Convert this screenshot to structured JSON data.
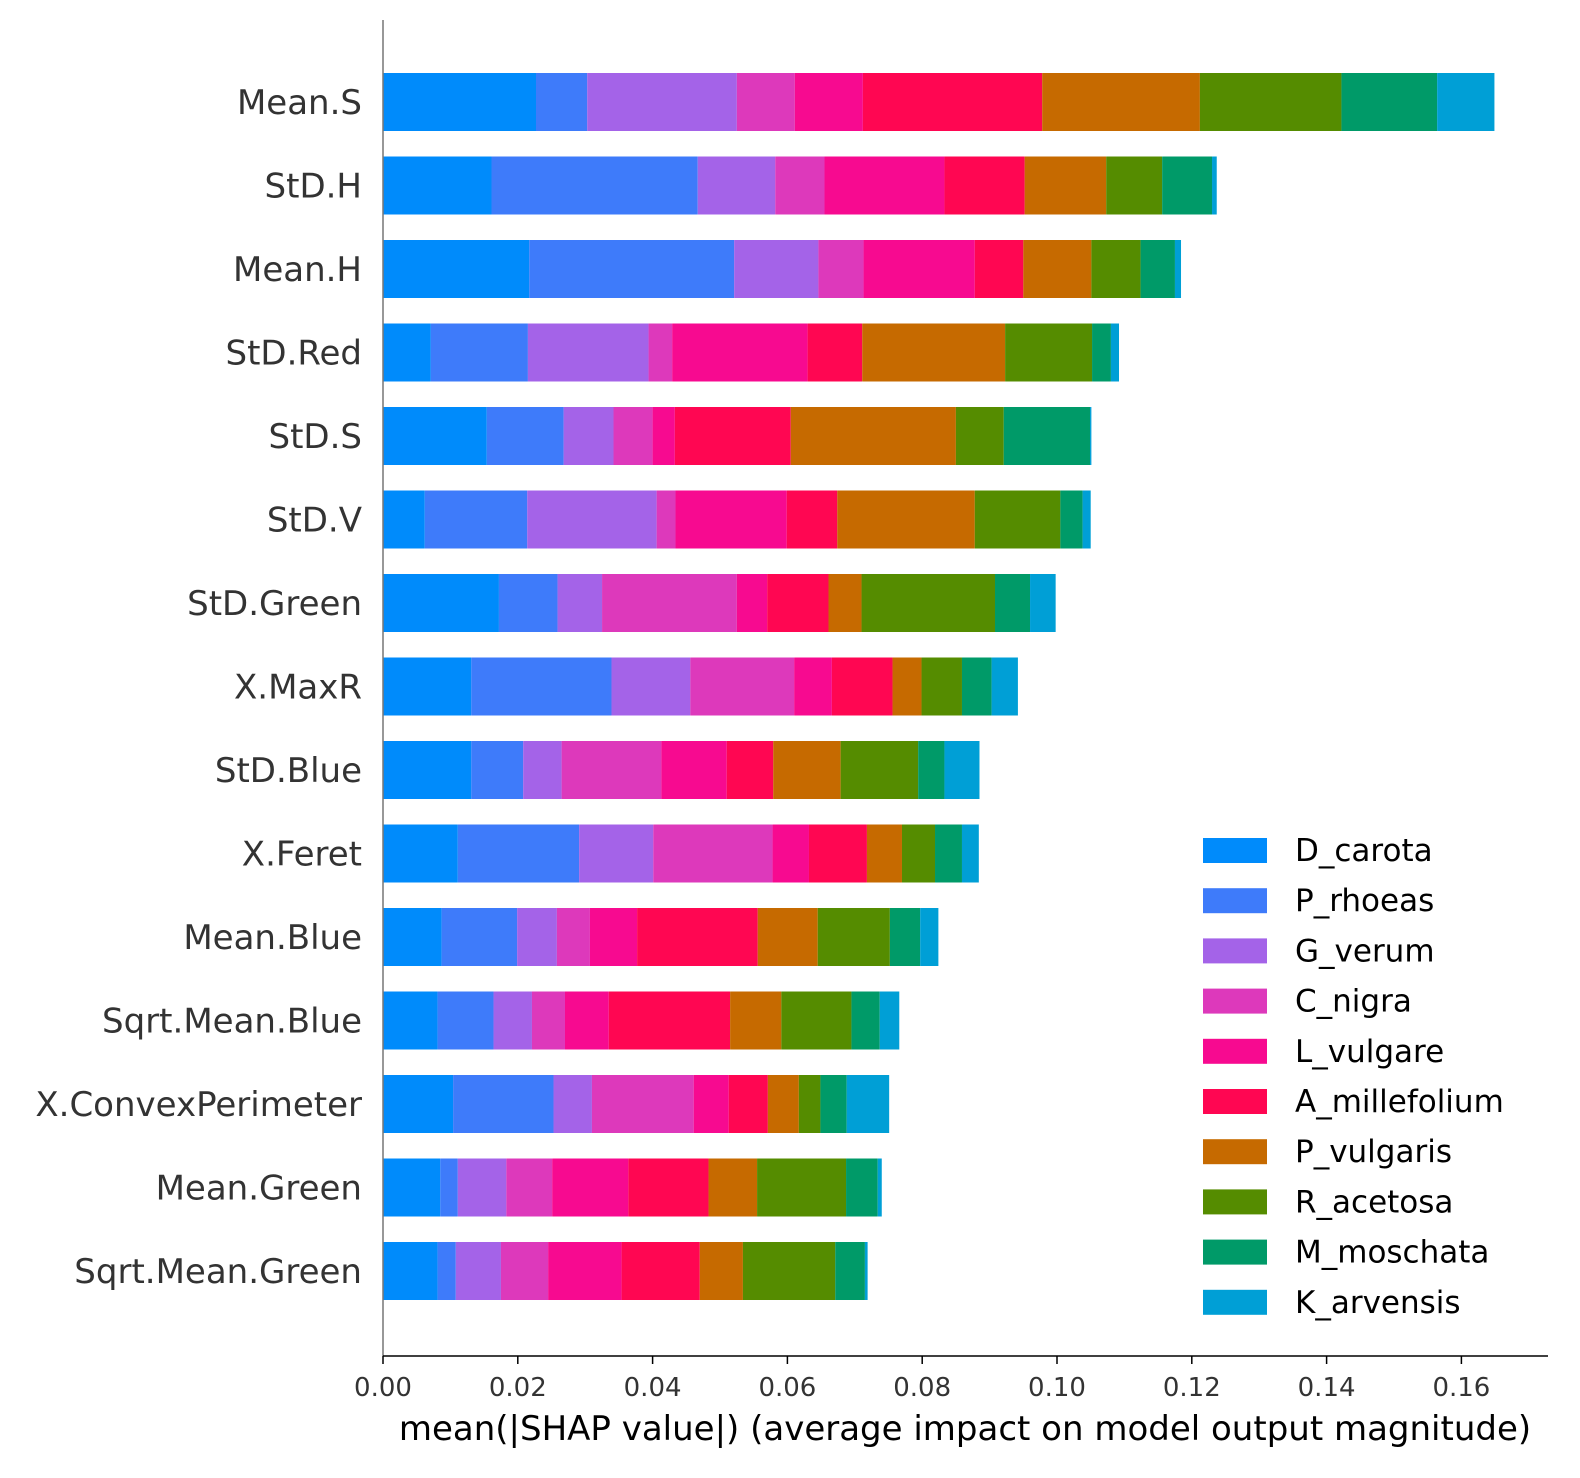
{
  "chart_data": {
    "type": "bar",
    "orientation": "horizontal",
    "stacked": true,
    "xlabel": "mean(|SHAP value|) (average impact on model output magnitude)",
    "xlim": [
      0,
      0.173
    ],
    "xticks": [
      "0.00",
      "0.02",
      "0.04",
      "0.06",
      "0.08",
      "0.10",
      "0.12",
      "0.14",
      "0.16"
    ],
    "legend_position": "lower-right",
    "categories": [
      "Mean.S",
      "StD.H",
      "Mean.H",
      "StD.Red",
      "StD.S",
      "StD.V",
      "StD.Green",
      "X.MaxR",
      "StD.Blue",
      "X.Feret",
      "Mean.Blue",
      "Sqrt.Mean.Blue",
      "X.ConvexPerimeter",
      "Mean.Green",
      "Sqrt.Mean.Green"
    ],
    "series": [
      {
        "name": "D_carota",
        "color": "#008bfb",
        "values": [
          0.0227,
          0.0161,
          0.0217,
          0.0071,
          0.0154,
          0.0062,
          0.0172,
          0.0131,
          0.0131,
          0.0111,
          0.0087,
          0.0081,
          0.0104,
          0.0085,
          0.0081
        ]
      },
      {
        "name": "P_rhoeas",
        "color": "#3e7bfa",
        "values": [
          0.0076,
          0.0306,
          0.0304,
          0.0144,
          0.0114,
          0.0152,
          0.0087,
          0.0208,
          0.0077,
          0.018,
          0.0112,
          0.0083,
          0.0149,
          0.0026,
          0.0027
        ]
      },
      {
        "name": "G_verum",
        "color": "#a463e8",
        "values": [
          0.0222,
          0.0115,
          0.0125,
          0.0179,
          0.0074,
          0.0192,
          0.0066,
          0.0117,
          0.0057,
          0.011,
          0.0059,
          0.0057,
          0.0057,
          0.0072,
          0.0067
        ]
      },
      {
        "name": "C_nigra",
        "color": "#dd39bb",
        "values": [
          0.0086,
          0.0073,
          0.0067,
          0.0035,
          0.0058,
          0.0028,
          0.02,
          0.0154,
          0.0148,
          0.0177,
          0.0049,
          0.0049,
          0.0151,
          0.0068,
          0.007
        ]
      },
      {
        "name": "L_vulgare",
        "color": "#f70a90",
        "values": [
          0.0101,
          0.0178,
          0.0165,
          0.0201,
          0.0033,
          0.0165,
          0.0045,
          0.0056,
          0.0097,
          0.0054,
          0.007,
          0.0065,
          0.0052,
          0.0113,
          0.0109
        ]
      },
      {
        "name": "A_millefolium",
        "color": "#ff0652",
        "values": [
          0.0266,
          0.0119,
          0.0072,
          0.0081,
          0.0172,
          0.0075,
          0.0091,
          0.009,
          0.0069,
          0.0086,
          0.0179,
          0.018,
          0.0058,
          0.0119,
          0.0116
        ]
      },
      {
        "name": "P_vulgaris",
        "color": "#c66a00",
        "values": [
          0.0234,
          0.0121,
          0.0101,
          0.0212,
          0.0245,
          0.0204,
          0.0049,
          0.0043,
          0.01,
          0.0052,
          0.0089,
          0.0076,
          0.0046,
          0.0072,
          0.0064
        ]
      },
      {
        "name": "R_acetosa",
        "color": "#558c00",
        "values": [
          0.021,
          0.0083,
          0.0073,
          0.0129,
          0.0071,
          0.0127,
          0.0198,
          0.006,
          0.0115,
          0.0049,
          0.0107,
          0.0104,
          0.0032,
          0.0132,
          0.0137
        ]
      },
      {
        "name": "M_moschata",
        "color": "#009a68",
        "values": [
          0.0142,
          0.0074,
          0.0051,
          0.0028,
          0.0128,
          0.0033,
          0.0052,
          0.0044,
          0.0039,
          0.004,
          0.0045,
          0.0042,
          0.0039,
          0.0047,
          0.0044
        ]
      },
      {
        "name": "K_arvensis",
        "color": "#009fd6",
        "values": [
          0.0085,
          0.0007,
          0.0009,
          0.0012,
          0.0002,
          0.0012,
          0.0038,
          0.0039,
          0.0052,
          0.0025,
          0.0027,
          0.0029,
          0.0063,
          0.0006,
          0.0004
        ]
      }
    ]
  }
}
